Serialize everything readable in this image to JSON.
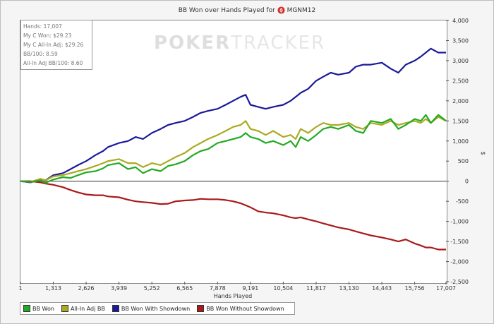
{
  "chart_data": {
    "type": "line",
    "title_text": "BB Won over Hands Played for",
    "player": "MGNM12",
    "xlabel": "Hands Played",
    "ylabel": "$",
    "xlim": [
      1,
      17007
    ],
    "ylim": [
      -2500,
      4000
    ],
    "x_ticks": [
      1,
      1313,
      2626,
      3939,
      5252,
      6565,
      7878,
      9191,
      10504,
      11817,
      13130,
      14443,
      15756,
      17007
    ],
    "x_tick_labels": [
      "1",
      "1,313",
      "2,626",
      "3,939",
      "5,252",
      "6,565",
      "7,878",
      "9,191",
      "10,504",
      "11,817",
      "13,130",
      "14,443",
      "15,756",
      "17,007"
    ],
    "y_ticks": [
      4000,
      3500,
      3000,
      2500,
      2000,
      1500,
      1000,
      500,
      0,
      -500,
      -1000,
      -1500,
      -2000,
      -2500
    ],
    "y_tick_labels": [
      "4,000",
      "3,500",
      "3,000",
      "2,500",
      "2,000",
      "1,500",
      "1,000",
      "500",
      "0",
      "-500",
      "-1,000",
      "-1,500",
      "-2,000",
      "-2,500"
    ],
    "stats": [
      "Hands: 17,007",
      "My C Won: $29.23",
      "My C All-In Adj: $29.26",
      "BB/100: 8.59",
      "All-In Adj BB/100: 8.60"
    ],
    "watermark": {
      "bold": "POKER",
      "light": "TRACKER"
    },
    "legend_placement": "bottom-left",
    "series": [
      {
        "name": "BB Won",
        "color": "#22aa22",
        "x": [
          1,
          400,
          800,
          1000,
          1313,
          1700,
          2000,
          2300,
          2626,
          3000,
          3300,
          3500,
          3939,
          4300,
          4600,
          4900,
          5252,
          5600,
          5900,
          6200,
          6565,
          6900,
          7200,
          7500,
          7878,
          8200,
          8500,
          8800,
          9000,
          9191,
          9500,
          9800,
          10100,
          10504,
          10800,
          11000,
          11200,
          11500,
          11817,
          12100,
          12400,
          12700,
          13130,
          13400,
          13700,
          14000,
          14443,
          14800,
          15100,
          15400,
          15756,
          16000,
          16200,
          16400,
          16700,
          17007
        ],
        "values": [
          0,
          -20,
          20,
          -40,
          40,
          100,
          80,
          150,
          220,
          250,
          320,
          400,
          450,
          300,
          350,
          200,
          300,
          250,
          380,
          420,
          500,
          650,
          750,
          800,
          950,
          1000,
          1050,
          1100,
          1200,
          1100,
          1050,
          950,
          1000,
          900,
          1000,
          850,
          1100,
          1000,
          1150,
          1300,
          1350,
          1300,
          1400,
          1250,
          1200,
          1500,
          1450,
          1550,
          1300,
          1400,
          1550,
          1500,
          1650,
          1450,
          1650,
          1500
        ]
      },
      {
        "name": "All-In Adj BB",
        "color": "#aaaa22",
        "x": [
          1,
          400,
          800,
          1000,
          1313,
          1700,
          2000,
          2300,
          2626,
          3000,
          3300,
          3500,
          3939,
          4300,
          4600,
          4900,
          5252,
          5600,
          5900,
          6200,
          6565,
          6900,
          7200,
          7500,
          7878,
          8200,
          8500,
          8800,
          9000,
          9191,
          9500,
          9800,
          10100,
          10504,
          10800,
          11000,
          11200,
          11500,
          11817,
          12100,
          12400,
          12700,
          13130,
          13400,
          13700,
          14000,
          14443,
          14800,
          15100,
          15400,
          15756,
          16000,
          16200,
          16400,
          16700,
          17007
        ],
        "values": [
          0,
          -20,
          60,
          20,
          120,
          150,
          200,
          250,
          300,
          380,
          450,
          500,
          550,
          450,
          450,
          350,
          450,
          400,
          500,
          600,
          700,
          850,
          950,
          1050,
          1150,
          1250,
          1350,
          1400,
          1500,
          1300,
          1250,
          1150,
          1250,
          1100,
          1150,
          1050,
          1300,
          1200,
          1350,
          1450,
          1400,
          1400,
          1450,
          1350,
          1300,
          1450,
          1400,
          1500,
          1400,
          1450,
          1500,
          1450,
          1550,
          1450,
          1600,
          1500
        ]
      },
      {
        "name": "BB Won With Showdown",
        "color": "#1a1a99",
        "x": [
          1,
          400,
          800,
          1000,
          1313,
          1700,
          2000,
          2300,
          2626,
          3000,
          3300,
          3500,
          3939,
          4300,
          4600,
          4900,
          5252,
          5600,
          5900,
          6200,
          6565,
          6900,
          7200,
          7500,
          7878,
          8200,
          8500,
          8800,
          9000,
          9191,
          9500,
          9800,
          10100,
          10504,
          10800,
          11000,
          11200,
          11500,
          11817,
          12100,
          12400,
          12700,
          13130,
          13400,
          13700,
          14000,
          14443,
          14800,
          15100,
          15400,
          15756,
          16000,
          16200,
          16400,
          16700,
          17007
        ],
        "values": [
          0,
          -30,
          50,
          20,
          150,
          200,
          300,
          400,
          500,
          650,
          750,
          850,
          950,
          1000,
          1100,
          1050,
          1200,
          1300,
          1400,
          1450,
          1500,
          1600,
          1700,
          1750,
          1800,
          1900,
          2000,
          2100,
          2150,
          1900,
          1850,
          1800,
          1850,
          1900,
          2000,
          2100,
          2200,
          2300,
          2500,
          2600,
          2700,
          2650,
          2700,
          2850,
          2900,
          2900,
          2950,
          2800,
          2700,
          2900,
          3000,
          3100,
          3200,
          3300,
          3200,
          3200
        ]
      },
      {
        "name": "BB Won Without Showdown",
        "color": "#aa1a1a",
        "x": [
          1,
          400,
          800,
          1000,
          1313,
          1700,
          2000,
          2300,
          2626,
          3000,
          3300,
          3500,
          3939,
          4300,
          4600,
          4900,
          5252,
          5600,
          5900,
          6200,
          6565,
          6900,
          7200,
          7500,
          7878,
          8200,
          8500,
          8800,
          9000,
          9191,
          9500,
          9800,
          10100,
          10504,
          10800,
          11000,
          11200,
          11500,
          11817,
          12100,
          12400,
          12700,
          13130,
          13400,
          13700,
          14000,
          14443,
          14800,
          15100,
          15400,
          15756,
          16000,
          16200,
          16400,
          16700,
          17007
        ],
        "values": [
          0,
          0,
          -30,
          -60,
          -90,
          -150,
          -220,
          -280,
          -330,
          -350,
          -350,
          -380,
          -400,
          -460,
          -500,
          -520,
          -540,
          -570,
          -560,
          -500,
          -480,
          -470,
          -440,
          -450,
          -450,
          -470,
          -500,
          -550,
          -600,
          -650,
          -750,
          -780,
          -800,
          -850,
          -900,
          -920,
          -900,
          -950,
          -1000,
          -1050,
          -1100,
          -1150,
          -1200,
          -1250,
          -1300,
          -1350,
          -1400,
          -1450,
          -1500,
          -1450,
          -1550,
          -1600,
          -1650,
          -1650,
          -1700,
          -1700
        ]
      }
    ]
  }
}
